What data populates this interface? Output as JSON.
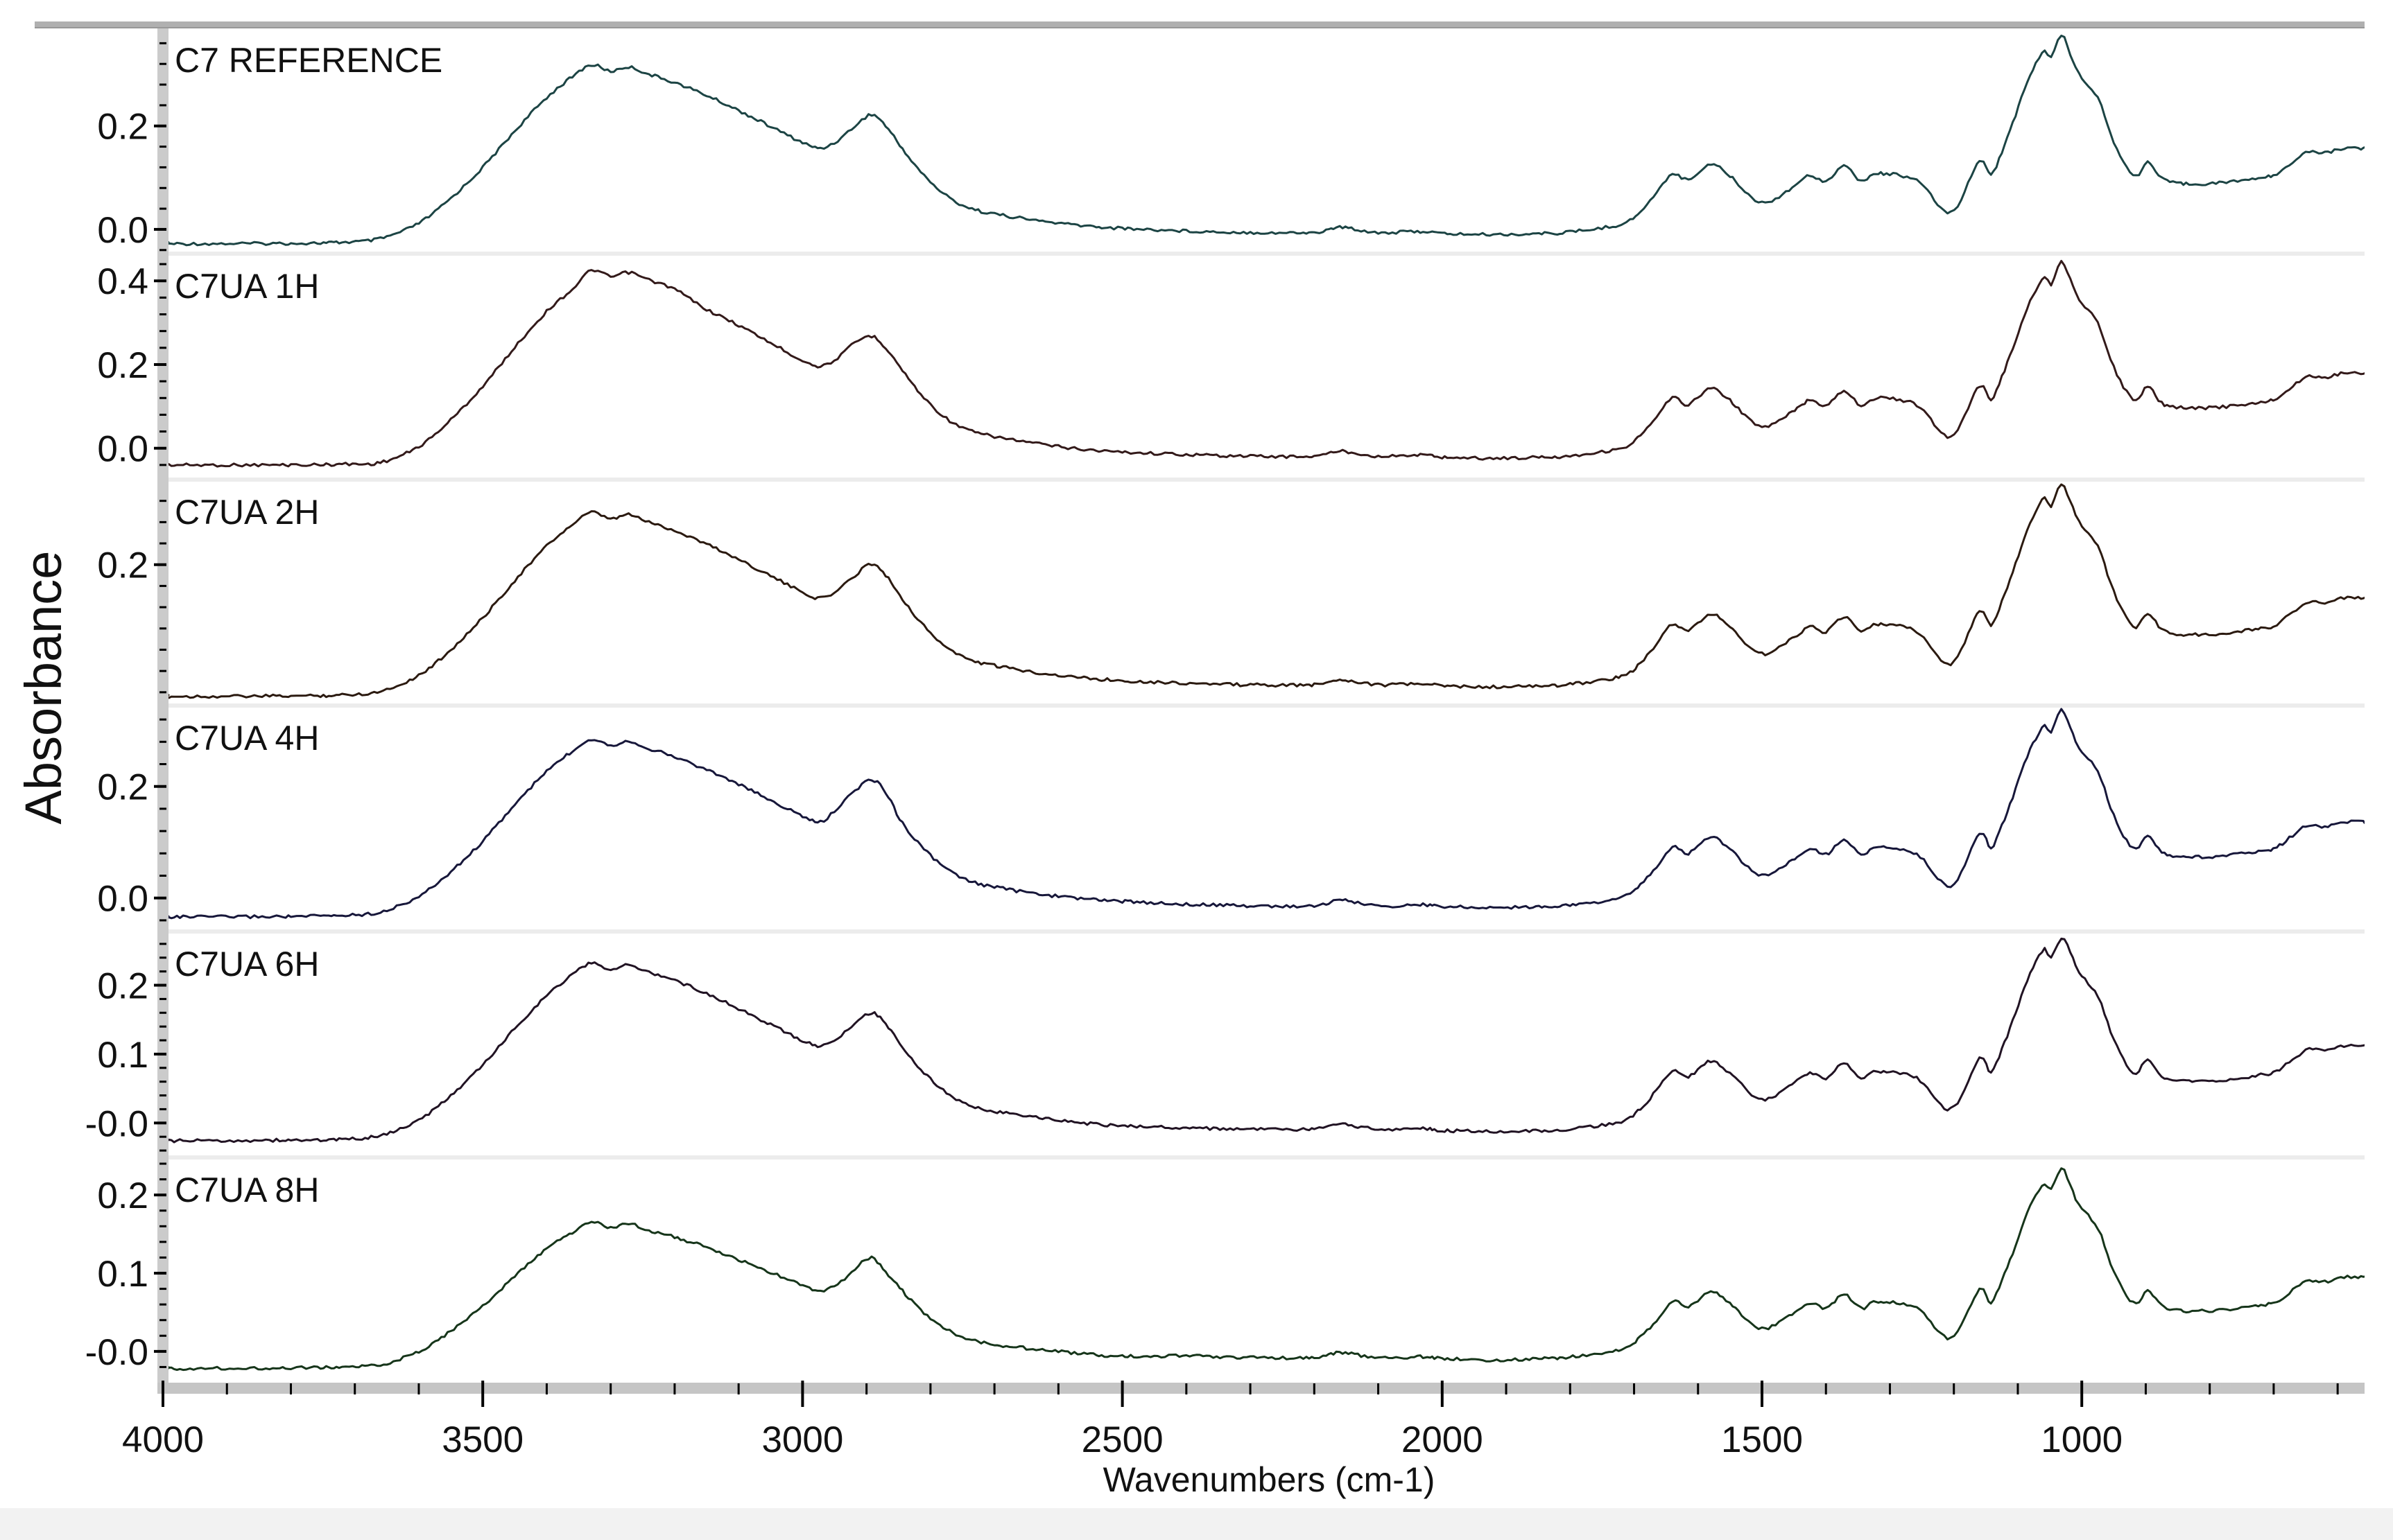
{
  "window": {
    "background": "#ffffff",
    "footer_strip_color": "#f2f2f2",
    "frame_color_top": "#b0b0b0",
    "frame_color_yaxis": "#cbcbcb",
    "frame_color_xaxis": "#c5c5c5"
  },
  "chart_data": {
    "type": "line",
    "xlabel": "Wavenumbers (cm-1)",
    "ylabel": "Absorbance",
    "x_range": [
      4000,
      560
    ],
    "x_ticks": [
      4000,
      3500,
      3000,
      2500,
      2000,
      1500,
      1000
    ],
    "x_tick_labels": [
      "4000",
      "3500",
      "3000",
      "2500",
      "2000",
      "1500",
      "1000"
    ],
    "x_minor_step": 100,
    "grid": "off",
    "legend": "none",
    "x": [
      4000,
      3800,
      3720,
      3660,
      3600,
      3550,
      3500,
      3450,
      3400,
      3360,
      3330,
      3300,
      3272,
      3240,
      3200,
      3150,
      3100,
      3050,
      3000,
      2972,
      2945,
      2918,
      2892,
      2870,
      2848,
      2820,
      2790,
      2760,
      2730,
      2700,
      2650,
      2600,
      2550,
      2500,
      2400,
      2300,
      2200,
      2160,
      2100,
      2030,
      2000,
      1920,
      1840,
      1800,
      1720,
      1690,
      1665,
      1640,
      1615,
      1580,
      1550,
      1500,
      1445,
      1425,
      1400,
      1372,
      1345,
      1318,
      1258,
      1205,
      1160,
      1142,
      1125,
      1108,
      1090,
      1072,
      1058,
      1048,
      1032,
      1018,
      1004,
      975,
      955,
      935,
      915,
      897,
      875,
      845,
      785,
      720,
      695,
      650,
      620,
      590,
      560
    ],
    "panels": [
      {
        "label": "C7 REFERENCE",
        "color": "#1c4444",
        "ylim": [
          -0.047,
          0.39
        ],
        "yticks": [
          {
            "v": 0.0,
            "t": "0.0"
          },
          {
            "v": 0.2,
            "t": "0.2"
          }
        ],
        "minor_step": 0.04,
        "y": [
          -0.028,
          -0.027,
          -0.025,
          -0.018,
          0.012,
          0.06,
          0.12,
          0.19,
          0.255,
          0.295,
          0.318,
          0.306,
          0.314,
          0.3,
          0.284,
          0.259,
          0.23,
          0.199,
          0.168,
          0.157,
          0.172,
          0.2,
          0.222,
          0.2,
          0.163,
          0.118,
          0.08,
          0.053,
          0.038,
          0.03,
          0.02,
          0.012,
          0.006,
          0.002,
          -0.003,
          -0.006,
          -0.006,
          0.004,
          -0.006,
          -0.004,
          -0.008,
          -0.01,
          -0.008,
          -0.005,
          0.01,
          0.035,
          0.07,
          0.108,
          0.096,
          0.127,
          0.103,
          0.052,
          0.088,
          0.105,
          0.094,
          0.122,
          0.094,
          0.108,
          0.094,
          0.033,
          0.133,
          0.105,
          0.15,
          0.205,
          0.27,
          0.32,
          0.345,
          0.331,
          0.377,
          0.34,
          0.3,
          0.255,
          0.185,
          0.13,
          0.103,
          0.13,
          0.098,
          0.089,
          0.09,
          0.1,
          0.108,
          0.148,
          0.148,
          0.157,
          0.157
        ]
      },
      {
        "label": "C7UA 1H",
        "color": "#331a1a",
        "ylim": [
          -0.075,
          0.465
        ],
        "yticks": [
          {
            "v": 0.0,
            "t": "0.0"
          },
          {
            "v": 0.2,
            "t": "0.2"
          },
          {
            "v": 0.4,
            "t": "0.4"
          }
        ],
        "minor_step": 0.04,
        "y": [
          -0.04,
          -0.04,
          -0.038,
          -0.034,
          0.004,
          0.068,
          0.148,
          0.241,
          0.327,
          0.38,
          0.425,
          0.41,
          0.42,
          0.402,
          0.38,
          0.332,
          0.294,
          0.252,
          0.21,
          0.196,
          0.216,
          0.252,
          0.268,
          0.24,
          0.195,
          0.138,
          0.09,
          0.056,
          0.038,
          0.028,
          0.015,
          0.004,
          -0.004,
          -0.009,
          -0.015,
          -0.019,
          -0.019,
          -0.007,
          -0.019,
          -0.016,
          -0.021,
          -0.024,
          -0.021,
          -0.018,
          0.0,
          0.031,
          0.073,
          0.12,
          0.105,
          0.143,
          0.114,
          0.051,
          0.095,
          0.116,
          0.103,
          0.137,
          0.103,
          0.12,
          0.103,
          0.028,
          0.15,
          0.116,
          0.171,
          0.238,
          0.317,
          0.378,
          0.409,
          0.392,
          0.448,
          0.403,
          0.354,
          0.299,
          0.214,
          0.147,
          0.114,
          0.147,
          0.108,
          0.097,
          0.098,
          0.11,
          0.12,
          0.169,
          0.169,
          0.18,
          0.18
        ]
      },
      {
        "label": "C7UA 2H",
        "color": "#2b1a10",
        "ylim": [
          -0.065,
          0.36
        ],
        "yticks": [
          {
            "v": 0.2,
            "t": "0.2"
          }
        ],
        "minor_step": 0.04,
        "y": [
          -0.048,
          -0.047,
          -0.045,
          -0.038,
          -0.008,
          0.04,
          0.1,
          0.17,
          0.235,
          0.275,
          0.298,
          0.286,
          0.294,
          0.28,
          0.264,
          0.239,
          0.21,
          0.179,
          0.148,
          0.137,
          0.152,
          0.18,
          0.202,
          0.18,
          0.143,
          0.098,
          0.06,
          0.033,
          0.018,
          0.01,
          0.0,
          -0.008,
          -0.014,
          -0.018,
          -0.023,
          -0.026,
          -0.026,
          -0.016,
          -0.026,
          -0.024,
          -0.028,
          -0.03,
          -0.028,
          -0.025,
          -0.01,
          0.015,
          0.05,
          0.088,
          0.076,
          0.107,
          0.083,
          0.032,
          0.068,
          0.085,
          0.074,
          0.102,
          0.074,
          0.088,
          0.074,
          0.013,
          0.113,
          0.085,
          0.13,
          0.185,
          0.25,
          0.3,
          0.325,
          0.311,
          0.352,
          0.32,
          0.28,
          0.235,
          0.165,
          0.11,
          0.083,
          0.11,
          0.078,
          0.069,
          0.07,
          0.08,
          0.088,
          0.128,
          0.128,
          0.137,
          0.137
        ]
      },
      {
        "label": "C7UA 4H",
        "color": "#17173a",
        "ylim": [
          -0.06,
          0.345
        ],
        "yticks": [
          {
            "v": 0.0,
            "t": "0.0"
          },
          {
            "v": 0.2,
            "t": "0.2"
          }
        ],
        "minor_step": 0.04,
        "y": [
          -0.034,
          -0.033,
          -0.031,
          -0.025,
          0.003,
          0.047,
          0.102,
          0.167,
          0.227,
          0.263,
          0.285,
          0.274,
          0.281,
          0.268,
          0.253,
          0.23,
          0.204,
          0.175,
          0.147,
          0.136,
          0.162,
          0.192,
          0.212,
          0.19,
          0.142,
          0.1,
          0.066,
          0.041,
          0.027,
          0.02,
          0.01,
          0.003,
          -0.002,
          -0.006,
          -0.011,
          -0.014,
          -0.014,
          -0.004,
          -0.014,
          -0.012,
          -0.015,
          -0.017,
          -0.015,
          -0.013,
          0.001,
          0.024,
          0.056,
          0.091,
          0.08,
          0.109,
          0.087,
          0.04,
          0.073,
          0.089,
          0.078,
          0.104,
          0.078,
          0.091,
          0.078,
          0.022,
          0.114,
          0.089,
          0.13,
          0.181,
          0.24,
          0.286,
          0.309,
          0.297,
          0.339,
          0.305,
          0.268,
          0.227,
          0.162,
          0.112,
          0.087,
          0.112,
          0.082,
          0.074,
          0.075,
          0.084,
          0.091,
          0.128,
          0.128,
          0.136,
          0.136
        ]
      },
      {
        "label": "C7UA 6H",
        "color": "#211323",
        "ylim": [
          -0.05,
          0.278
        ],
        "yticks": [
          {
            "v": 0.0,
            "t": "-0.0"
          },
          {
            "v": 0.1,
            "t": "0.1"
          },
          {
            "v": 0.2,
            "t": "0.2"
          }
        ],
        "minor_step": 0.02,
        "y": [
          -0.026,
          -0.025,
          -0.024,
          -0.018,
          0.004,
          0.04,
          0.084,
          0.137,
          0.185,
          0.215,
          0.232,
          0.223,
          0.229,
          0.219,
          0.207,
          0.188,
          0.166,
          0.143,
          0.12,
          0.112,
          0.123,
          0.144,
          0.16,
          0.144,
          0.116,
          0.083,
          0.055,
          0.034,
          0.023,
          0.017,
          0.01,
          0.004,
          -0.001,
          -0.004,
          -0.007,
          -0.009,
          -0.009,
          -0.002,
          -0.009,
          -0.008,
          -0.011,
          -0.012,
          -0.011,
          -0.009,
          0.002,
          0.021,
          0.047,
          0.075,
          0.067,
          0.09,
          0.072,
          0.034,
          0.061,
          0.073,
          0.065,
          0.086,
          0.065,
          0.075,
          0.065,
          0.02,
          0.094,
          0.073,
          0.107,
          0.148,
          0.196,
          0.233,
          0.252,
          0.242,
          0.268,
          0.248,
          0.219,
          0.185,
          0.133,
          0.092,
          0.072,
          0.092,
          0.068,
          0.061,
          0.062,
          0.07,
          0.075,
          0.105,
          0.105,
          0.112,
          0.112
        ]
      },
      {
        "label": "C7UA 8H",
        "color": "#16351a",
        "ylim": [
          -0.04,
          0.248
        ],
        "yticks": [
          {
            "v": 0.0,
            "t": "-0.0"
          },
          {
            "v": 0.1,
            "t": "0.1"
          },
          {
            "v": 0.2,
            "t": "0.2"
          }
        ],
        "minor_step": 0.02,
        "y": [
          -0.022,
          -0.021,
          -0.02,
          -0.017,
          0.0,
          0.026,
          0.058,
          0.096,
          0.131,
          0.152,
          0.165,
          0.158,
          0.163,
          0.155,
          0.146,
          0.133,
          0.117,
          0.101,
          0.084,
          0.078,
          0.086,
          0.106,
          0.12,
          0.101,
          0.081,
          0.057,
          0.036,
          0.022,
          0.014,
          0.009,
          0.004,
          0.0,
          -0.004,
          -0.006,
          -0.006,
          -0.008,
          -0.008,
          -0.002,
          -0.008,
          -0.007,
          -0.009,
          -0.011,
          -0.009,
          -0.007,
          0.002,
          0.018,
          0.04,
          0.064,
          0.057,
          0.076,
          0.061,
          0.029,
          0.052,
          0.062,
          0.055,
          0.073,
          0.055,
          0.064,
          0.055,
          0.017,
          0.08,
          0.062,
          0.091,
          0.126,
          0.167,
          0.199,
          0.215,
          0.206,
          0.235,
          0.212,
          0.187,
          0.158,
          0.113,
          0.078,
          0.061,
          0.078,
          0.058,
          0.052,
          0.053,
          0.059,
          0.064,
          0.089,
          0.089,
          0.095,
          0.095
        ]
      }
    ]
  }
}
